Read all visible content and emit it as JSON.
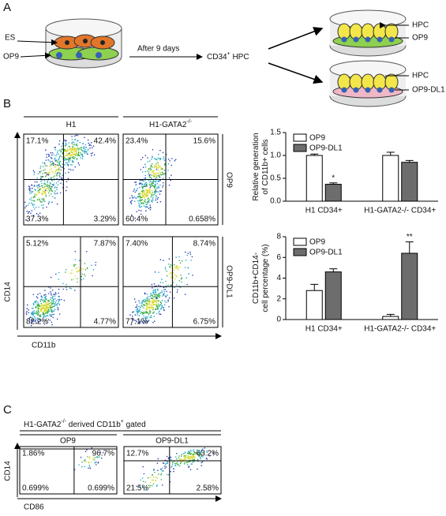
{
  "panel_a": {
    "label": "A",
    "es": "ES",
    "op9_left": "OP9",
    "step": "After 9 days",
    "product": [
      {
        "text": "CD34"
      },
      {
        "sup": "+"
      },
      {
        "text": " HPC"
      }
    ],
    "top_dish": [
      "HPC",
      "OP9"
    ],
    "bottom_dish": [
      "HPC",
      "OP9-DL1"
    ]
  },
  "panel_b": {
    "label": "B",
    "col_headers": [
      [
        {
          "text": "H1"
        }
      ],
      [
        {
          "text": "H1-GATA2"
        },
        {
          "sup": "-/-"
        }
      ]
    ],
    "row_headers": [
      "OP9",
      "OP9-DL1"
    ],
    "y_axis": "CD14",
    "x_axis": "CD11b",
    "plots": [
      {
        "ul": "17.1%",
        "ur": "42.4%",
        "ll": "37.3%",
        "lr": "3.29%"
      },
      {
        "ul": "23.4%",
        "ur": "15.6%",
        "ll": "60.4%",
        "lr": "0.658%"
      },
      {
        "ul": "5.12%",
        "ur": "7.87%",
        "ll": "82.2%",
        "lr": "4.77%"
      },
      {
        "ul": "7.40%",
        "ur": "8.74%",
        "ll": "77.1%",
        "lr": "6.75%"
      }
    ]
  },
  "chart_data": [
    {
      "type": "bar",
      "y_label": [
        "Relative generation",
        "of CD11b+ cells"
      ],
      "categories": [
        "H1 CD34+",
        "H1-GATA2-/- CD34+"
      ],
      "series": [
        {
          "name": "OP9",
          "color": "#ffffff",
          "values": [
            1.0,
            1.0
          ],
          "errors": [
            0.03,
            0.07
          ]
        },
        {
          "name": "OP9-DL1",
          "color": "#6d6d6d",
          "values": [
            0.37,
            0.85
          ],
          "errors": [
            0.03,
            0.04
          ],
          "significance": [
            "*",
            null
          ]
        }
      ],
      "ylim": [
        0,
        1.5
      ],
      "yticks": [
        {
          "value": 0,
          "label": "0.0"
        },
        0.5,
        {
          "value": 1,
          "label": "1.0"
        },
        1.5
      ]
    },
    {
      "type": "bar",
      "y_label": [
        "CD11b+CD14-",
        "cell percentage (%)"
      ],
      "categories": [
        "H1 CD34+",
        "H1-GATA2-/- CD34+"
      ],
      "series": [
        {
          "name": "OP9",
          "color": "#ffffff",
          "values": [
            2.8,
            0.3
          ],
          "errors": [
            0.6,
            0.2
          ]
        },
        {
          "name": "OP9-DL1",
          "color": "#6d6d6d",
          "values": [
            4.6,
            6.4
          ],
          "errors": [
            0.3,
            1.1
          ],
          "significance": [
            null,
            "**"
          ]
        }
      ],
      "ylim": [
        0,
        8
      ],
      "yticks": [
        0,
        2,
        4,
        6,
        8
      ]
    }
  ],
  "panel_c": {
    "label": "C",
    "header": [
      {
        "text": "H1-GATA2"
      },
      {
        "sup": "-/-"
      },
      {
        "text": " derived CD11b"
      },
      {
        "sup": "+"
      },
      {
        "text": " gated"
      }
    ],
    "col_headers": [
      "OP9",
      "OP9-DL1"
    ],
    "y_axis": "CD14",
    "x_axis": "CD86",
    "plots": [
      {
        "ul": "1.86%",
        "ur": "96.7%",
        "ll": "0.699%",
        "lr": "0.699%"
      },
      {
        "ul": "12.7%",
        "ur": "63.2%",
        "ll": "21.5%",
        "lr": "2.58%"
      }
    ]
  }
}
